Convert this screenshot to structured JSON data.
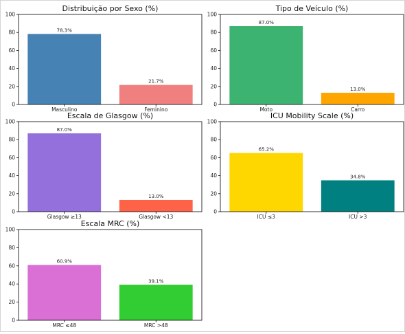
{
  "chart_data": [
    {
      "type": "bar",
      "title": "Distribuição por Sexo (%)",
      "categories": [
        "Masculino",
        "Feminino"
      ],
      "values": [
        78.3,
        21.7
      ],
      "value_labels": [
        "78.3%",
        "21.7%"
      ],
      "colors": [
        "#4682b4",
        "#f08080"
      ],
      "ylim": [
        0,
        100
      ],
      "yticks": [
        0,
        20,
        40,
        60,
        80,
        100
      ],
      "ytick_labels": [
        "0",
        "20",
        "40",
        "60",
        "80",
        "100"
      ],
      "grid": false
    },
    {
      "type": "bar",
      "title": "Tipo de Veículo (%)",
      "categories": [
        "Moto",
        "Carro"
      ],
      "values": [
        87.0,
        13.0
      ],
      "value_labels": [
        "87.0%",
        "13.0%"
      ],
      "colors": [
        "#3cb371",
        "#ffa500"
      ],
      "ylim": [
        0,
        100
      ],
      "yticks": [
        0,
        20,
        40,
        60,
        80,
        100
      ],
      "ytick_labels": [
        "0",
        "20",
        "40",
        "60",
        "80",
        "100"
      ],
      "grid": false
    },
    {
      "type": "bar",
      "title": "Escala de Glasgow (%)",
      "categories": [
        "Glasgow ≥13",
        "Glasgow <13"
      ],
      "values": [
        87.0,
        13.0
      ],
      "value_labels": [
        "87.0%",
        "13.0%"
      ],
      "colors": [
        "#9370db",
        "#ff6347"
      ],
      "ylim": [
        0,
        100
      ],
      "yticks": [
        0,
        20,
        40,
        60,
        80,
        100
      ],
      "ytick_labels": [
        "0",
        "20",
        "40",
        "60",
        "80",
        "100"
      ],
      "grid": false
    },
    {
      "type": "bar",
      "title": "ICU Mobility Scale (%)",
      "categories": [
        "ICU ≤3",
        "ICU >3"
      ],
      "values": [
        65.2,
        34.8
      ],
      "value_labels": [
        "65.2%",
        "34.8%"
      ],
      "colors": [
        "#ffd700",
        "#008080"
      ],
      "ylim": [
        0,
        100
      ],
      "yticks": [
        0,
        20,
        40,
        60,
        80,
        100
      ],
      "ytick_labels": [
        "0",
        "20",
        "40",
        "60",
        "80",
        "100"
      ],
      "grid": false
    },
    {
      "type": "bar",
      "title": "Escala MRC (%)",
      "categories": [
        "MRC ≤48",
        "MRC >48"
      ],
      "values": [
        60.9,
        39.1
      ],
      "value_labels": [
        "60.9%",
        "39.1%"
      ],
      "colors": [
        "#da70d6",
        "#32cd32"
      ],
      "ylim": [
        0,
        100
      ],
      "yticks": [
        0,
        20,
        40,
        60,
        80,
        100
      ],
      "ytick_labels": [
        "0",
        "20",
        "40",
        "60",
        "80",
        "100"
      ],
      "grid": false
    }
  ]
}
